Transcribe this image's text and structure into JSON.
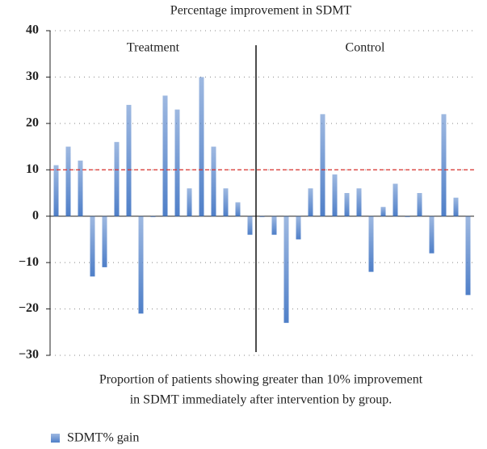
{
  "chart_data": {
    "type": "bar",
    "title": "Percentage improvement in SDMT",
    "group_labels": [
      "Treatment",
      "Control"
    ],
    "caption": [
      "Proportion of patients showing greater than 10% improvement",
      "in SDMT immediately after intervention by group."
    ],
    "categories": [
      null,
      null,
      null,
      null,
      null,
      null,
      null,
      null,
      null,
      null,
      null,
      null,
      null,
      null,
      null,
      null,
      null,
      null,
      null,
      null,
      null,
      null,
      null,
      null,
      null,
      null,
      null,
      null,
      null,
      null,
      null,
      null,
      null,
      null,
      null
    ],
    "series": [
      {
        "name": "SDMT% gain",
        "color": "#4f7fc8",
        "values": [
          11,
          15,
          12,
          -13,
          -11,
          16,
          24,
          -21,
          0,
          26,
          23,
          6,
          30,
          15,
          6,
          3,
          -4,
          0,
          -4,
          -23,
          -5,
          6,
          22,
          9,
          5,
          6,
          -12,
          2,
          7,
          0,
          5,
          -8,
          22,
          4,
          -17
        ]
      }
    ],
    "threshold": 10,
    "threshold_color": "#d9302c",
    "ylim": [
      -30,
      40
    ],
    "yticks": [
      {
        "value": -30,
        "label": "−30"
      },
      {
        "value": -20,
        "label": "−20"
      },
      {
        "value": -10,
        "label": "−10"
      },
      0,
      10,
      20,
      30,
      40
    ],
    "grid": true,
    "legend": "bottom-left"
  }
}
